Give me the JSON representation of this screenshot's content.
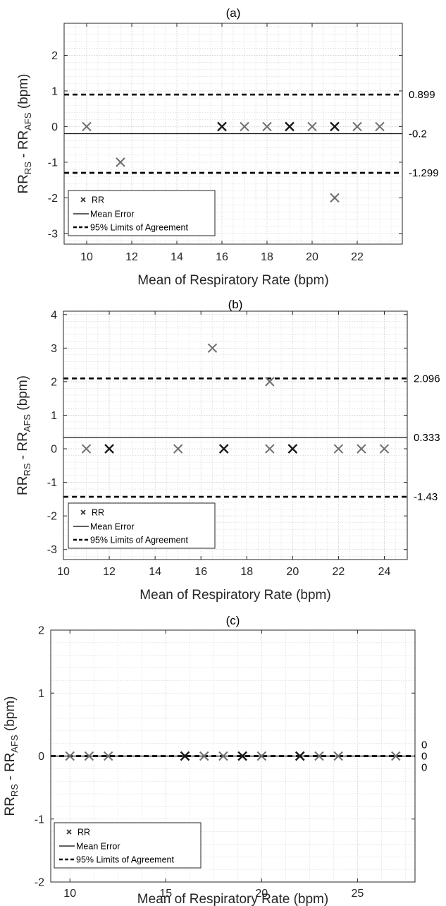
{
  "chart_data": [
    {
      "type": "scatter",
      "title": "(a)",
      "xlabel": "Mean of Respiratory Rate (bpm)",
      "ylabel": {
        "base": "RR",
        "sub1": "RS",
        "mid": " - RR",
        "sub2": "AFS",
        "unit": " (bpm)"
      },
      "xlim": [
        9,
        24
      ],
      "ylim": [
        -3.3,
        2.9
      ],
      "xticks": [
        10,
        12,
        14,
        16,
        18,
        20,
        22
      ],
      "yticks": [
        -3,
        -2,
        -1,
        0,
        1,
        2
      ],
      "grid": true,
      "legend_position": "bottom-left",
      "legend": [
        "RR",
        "Mean Error",
        "95% Limits of Agreement"
      ],
      "points": [
        {
          "x": 10,
          "y": 0,
          "dark": false
        },
        {
          "x": 11.5,
          "y": -1,
          "dark": false
        },
        {
          "x": 16,
          "y": 0,
          "dark": true
        },
        {
          "x": 17,
          "y": 0,
          "dark": false
        },
        {
          "x": 18,
          "y": 0,
          "dark": false
        },
        {
          "x": 19,
          "y": 0,
          "dark": true
        },
        {
          "x": 20,
          "y": 0,
          "dark": false
        },
        {
          "x": 21,
          "y": 0,
          "dark": true
        },
        {
          "x": 21,
          "y": -2,
          "dark": false
        },
        {
          "x": 22,
          "y": 0,
          "dark": false
        },
        {
          "x": 23,
          "y": 0,
          "dark": false
        }
      ],
      "mean": -0.2,
      "upper_loa": 0.899,
      "lower_loa": -1.299,
      "mean_label": "-0.2",
      "upper_label": "0.899",
      "lower_label": "-1.299"
    },
    {
      "type": "scatter",
      "title": "(b)",
      "xlabel": "Mean of Respiratory Rate (bpm)",
      "ylabel": {
        "base": "RR",
        "sub1": "RS",
        "mid": " - RR",
        "sub2": "AFS",
        "unit": " (bpm)"
      },
      "xlim": [
        10,
        25
      ],
      "ylim": [
        -3.3,
        4.1
      ],
      "xticks": [
        10,
        12,
        14,
        16,
        18,
        20,
        22,
        24
      ],
      "yticks": [
        -3,
        -2,
        -1,
        0,
        1,
        2,
        3,
        4
      ],
      "grid": true,
      "legend_position": "bottom-left",
      "legend": [
        "RR",
        "Mean Error",
        "95% Limits of Agreement"
      ],
      "points": [
        {
          "x": 11,
          "y": 0,
          "dark": false
        },
        {
          "x": 12,
          "y": 0,
          "dark": true
        },
        {
          "x": 15,
          "y": 0,
          "dark": false
        },
        {
          "x": 16.5,
          "y": 3,
          "dark": false
        },
        {
          "x": 17,
          "y": 0,
          "dark": true
        },
        {
          "x": 19,
          "y": 2,
          "dark": false
        },
        {
          "x": 19,
          "y": 0,
          "dark": false
        },
        {
          "x": 20,
          "y": 0,
          "dark": true
        },
        {
          "x": 22,
          "y": 0,
          "dark": false
        },
        {
          "x": 23,
          "y": 0,
          "dark": false
        },
        {
          "x": 24,
          "y": 0,
          "dark": false
        }
      ],
      "mean": 0.333,
      "upper_loa": 2.096,
      "lower_loa": -1.43,
      "mean_label": "0.333",
      "upper_label": "2.096",
      "lower_label": "-1.43"
    },
    {
      "type": "scatter",
      "title": "(c)",
      "xlabel": "Mean of Respiratory Rate (bpm)",
      "ylabel": {
        "base": "RR",
        "sub1": "RS",
        "mid": " - RR",
        "sub2": "AFS",
        "unit": " (bpm)"
      },
      "xlim": [
        9,
        28
      ],
      "ylim": [
        -2,
        2
      ],
      "xticks": [
        10,
        15,
        20,
        25
      ],
      "yticks": [
        -2,
        -1,
        0,
        1,
        2
      ],
      "grid": true,
      "legend_position": "bottom-left",
      "legend": [
        "RR",
        "Mean Error",
        "95% Limits of Agreement"
      ],
      "points": [
        {
          "x": 10,
          "y": 0,
          "dark": false
        },
        {
          "x": 11,
          "y": 0,
          "dark": false
        },
        {
          "x": 12,
          "y": 0,
          "dark": false
        },
        {
          "x": 16,
          "y": 0,
          "dark": true
        },
        {
          "x": 17,
          "y": 0,
          "dark": false
        },
        {
          "x": 18,
          "y": 0,
          "dark": false
        },
        {
          "x": 19,
          "y": 0,
          "dark": true
        },
        {
          "x": 20,
          "y": 0,
          "dark": false
        },
        {
          "x": 22,
          "y": 0,
          "dark": true
        },
        {
          "x": 23,
          "y": 0,
          "dark": false
        },
        {
          "x": 24,
          "y": 0,
          "dark": false
        },
        {
          "x": 27,
          "y": 0,
          "dark": false
        }
      ],
      "mean": 0,
      "upper_loa": 0,
      "lower_loa": 0,
      "mean_label": "0",
      "upper_label": "0",
      "lower_label": "0"
    }
  ],
  "colors": {
    "marker_dark": "#1a1a1a",
    "marker_light": "#6e6e6e",
    "line": "#000000"
  }
}
